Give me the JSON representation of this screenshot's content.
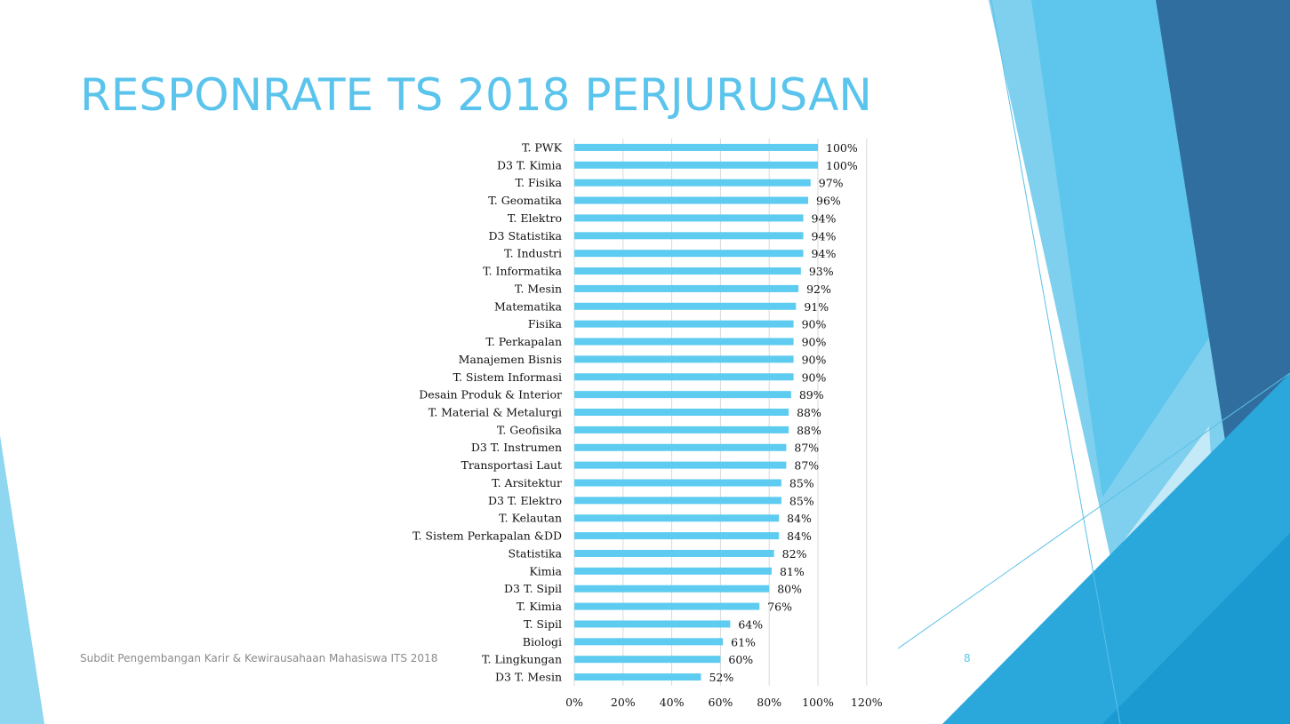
{
  "slide": {
    "title": "RESPONRATE TS 2018 PERJURUSAN",
    "footer": "Subdit Pengembangan Karir & Kewirausahaan Mahasiswa ITS 2018",
    "page_number": "8"
  },
  "colors": {
    "bar": "#5ecbf0",
    "title": "#5bc4ec",
    "grid": "#d9d9d9"
  },
  "chart_data": {
    "type": "bar",
    "orientation": "horizontal",
    "title": "",
    "xlabel": "",
    "ylabel": "",
    "xlim": [
      0,
      120
    ],
    "x_ticks": [
      "0%",
      "20%",
      "40%",
      "60%",
      "80%",
      "100%",
      "120%"
    ],
    "grid": true,
    "categories": [
      "T. PWK",
      "D3 T. Kimia",
      "T. Fisika",
      "T. Geomatika",
      "T. Elektro",
      "D3 Statistika",
      "T. Industri",
      "T. Informatika",
      "T. Mesin",
      "Matematika",
      "Fisika",
      "T. Perkapalan",
      "Manajemen Bisnis",
      "T. Sistem Informasi",
      "Desain Produk & Interior",
      "T. Material & Metalurgi",
      "T. Geofisika",
      "D3 T. Instrumen",
      "Transportasi Laut",
      "T. Arsitektur",
      "D3 T. Elektro",
      "T. Kelautan",
      "T. Sistem Perkapalan &DD",
      "Statistika",
      "Kimia",
      "D3 T. Sipil",
      "T. Kimia",
      "T. Sipil",
      "Biologi",
      "T. Lingkungan",
      "D3 T. Mesin"
    ],
    "values": [
      100,
      100,
      97,
      96,
      94,
      94,
      94,
      93,
      92,
      91,
      90,
      90,
      90,
      90,
      89,
      88,
      88,
      87,
      87,
      85,
      85,
      84,
      84,
      82,
      81,
      80,
      76,
      64,
      61,
      60,
      52
    ],
    "data_labels": [
      "100%",
      "100%",
      "97%",
      "96%",
      "94%",
      "94%",
      "94%",
      "93%",
      "92%",
      "91%",
      "90%",
      "90%",
      "90%",
      "90%",
      "89%",
      "88%",
      "88%",
      "87%",
      "87%",
      "85%",
      "85%",
      "84%",
      "84%",
      "82%",
      "81%",
      "80%",
      "76%",
      "64%",
      "61%",
      "60%",
      "52%"
    ]
  }
}
